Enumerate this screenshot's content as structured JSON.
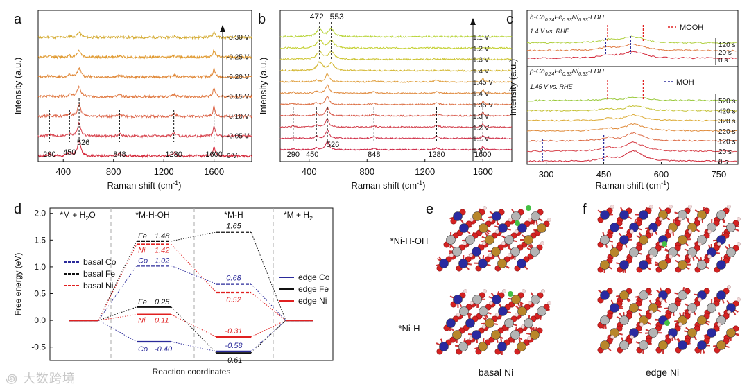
{
  "panels": {
    "a": "a",
    "b": "b",
    "c": "c",
    "d": "d",
    "e": "e",
    "f": "f"
  },
  "raman_axis": {
    "xlabel": "Raman shift (cm",
    "xlabel_sup": "-1",
    "xlabel_end": ")",
    "ylabel": "Intensity (a.u.)"
  },
  "watermark": "大数跨境",
  "chart_data": [
    {
      "id": "a",
      "type": "line",
      "xlim": [
        200,
        1900
      ],
      "xticks": [
        400,
        800,
        1200,
        1600
      ],
      "trace_labels": [
        "-0.30 V",
        "-0.25 V",
        "-0.20 V",
        "-0.15 V",
        "-0.10 V",
        "-0.05 V",
        "0 V"
      ],
      "trace_colors": [
        "#d4aa30",
        "#e09a30",
        "#e08838",
        "#e07840",
        "#dc6448",
        "#d84650",
        "#d4283a"
      ],
      "peak_positions": [
        290,
        450,
        526,
        848,
        1280,
        1600
      ],
      "peak_labels": [
        "290",
        "450",
        "526",
        "848",
        "1280",
        "1600"
      ]
    },
    {
      "id": "b",
      "type": "line",
      "xlim": [
        200,
        1800
      ],
      "xticks": [
        400,
        800,
        1200,
        1600
      ],
      "trace_labels": [
        "1.1 V",
        "1.2 V",
        "1.3 V",
        "1.4 V",
        "1.45 V",
        "1.4 V",
        "1.35 V",
        "1.3 V",
        "1.2 V",
        "1.1 V",
        "1 V"
      ],
      "trace_colors": [
        "#b8d438",
        "#c4d030",
        "#ccc430",
        "#d4b834",
        "#e0a040",
        "#e08c40",
        "#dc7044",
        "#d8584a",
        "#d44450",
        "#d03048",
        "#cc2040"
      ],
      "peak_positions": [
        290,
        450,
        472,
        526,
        553,
        848,
        1280,
        1600
      ],
      "top_peak_labels": [
        "472",
        "553"
      ],
      "bottom_peak_labels": [
        "290",
        "450",
        "526",
        "848",
        "1280",
        "1600"
      ]
    },
    {
      "id": "c",
      "type": "line",
      "xlim": [
        250,
        800
      ],
      "xticks": [
        300,
        450,
        600,
        750
      ],
      "top_title": "h-Co",
      "top_title_rest": "Fe",
      "top_title_rest2": "Ni",
      "top_title_end": "-LDH",
      "top_sub": [
        "0.34",
        "0.33",
        "0.33"
      ],
      "top_potential": "1.4 V vs. RHE",
      "top_traces": [
        "120 s",
        "20 s",
        "0 s"
      ],
      "top_colors": [
        "#b0d040",
        "#e07a40",
        "#d4283a"
      ],
      "bottom_title": "p-Co",
      "bottom_potential": "1.45 V vs. RHE",
      "bottom_traces": [
        "520 s",
        "420 s",
        "320 s",
        "220 s",
        "120 s",
        "20 s",
        "0 s"
      ],
      "bottom_colors": [
        "#98c838",
        "#c4c030",
        "#dcaa34",
        "#e08c3c",
        "#dc6a44",
        "#d8444c",
        "#d02838"
      ],
      "legend_mooh": "MOOH",
      "legend_moh": "MOH",
      "mooh_positions": [
        460,
        553
      ],
      "moh_positions": [
        290,
        450
      ]
    },
    {
      "id": "d",
      "type": "energy_diagram",
      "title": "",
      "ylabel": "Free energy (eV)",
      "xlabel": "Reaction coordinates",
      "ylim": [
        -0.75,
        2.1
      ],
      "yticks": [
        -0.5,
        0.0,
        0.5,
        1.0,
        1.5,
        2.0
      ],
      "ytick_labels": [
        "-0.5",
        "0.0",
        "0.5",
        "1.0",
        "1.5",
        "2.0"
      ],
      "states": [
        "*M + H2O",
        "*M-H-OH",
        "*M-H",
        "*M + H2"
      ],
      "state_labels": [
        {
          "pre": "*M + H",
          "sub": "2",
          "post": "O"
        },
        {
          "pre": "*M-H-OH",
          "sub": "",
          "post": ""
        },
        {
          "pre": "*M-H",
          "sub": "",
          "post": ""
        },
        {
          "pre": "*M + H",
          "sub": "2",
          "post": ""
        }
      ],
      "series": [
        {
          "name": "basal Co",
          "values": [
            0,
            1.02,
            0.68,
            0
          ],
          "color": "#2a2a9a",
          "dashed": true,
          "labels": [
            "",
            "Co",
            "",
            ""
          ],
          "value_labels": [
            "",
            "1.02",
            "0.68",
            ""
          ]
        },
        {
          "name": "basal Fe",
          "values": [
            0,
            1.48,
            1.65,
            0
          ],
          "color": "#111111",
          "dashed": true,
          "labels": [
            "",
            "Fe",
            "",
            ""
          ],
          "value_labels": [
            "",
            "1.48",
            "1.65",
            ""
          ]
        },
        {
          "name": "basal Ni",
          "values": [
            0,
            1.42,
            0.52,
            0
          ],
          "color": "#e02020",
          "dashed": true,
          "labels": [
            "",
            "Ni",
            "",
            ""
          ],
          "value_labels": [
            "",
            "1.42",
            "0.52",
            ""
          ]
        },
        {
          "name": "edge Co",
          "values": [
            0,
            -0.4,
            -0.58,
            0
          ],
          "color": "#2a2a9a",
          "dashed": false,
          "labels": [
            "",
            "Co",
            "",
            ""
          ],
          "value_labels": [
            "",
            "-0.40",
            "-0.58",
            ""
          ]
        },
        {
          "name": "edge Fe",
          "values": [
            0,
            0.25,
            -0.61,
            0
          ],
          "color": "#111111",
          "dashed": false,
          "labels": [
            "",
            "Fe",
            "",
            ""
          ],
          "value_labels": [
            "",
            "0.25",
            "-0.61",
            ""
          ]
        },
        {
          "name": "edge Ni",
          "values": [
            0,
            0.11,
            -0.31,
            0
          ],
          "color": "#e02020",
          "dashed": false,
          "labels": [
            "",
            "Ni",
            "",
            ""
          ],
          "value_labels": [
            "",
            "0.11",
            "-0.31",
            ""
          ]
        }
      ]
    }
  ],
  "panel_e": {
    "row1": "*Ni-H-OH",
    "row2": "*Ni-H",
    "caption": "basal Ni"
  },
  "panel_f": {
    "caption": "edge Ni"
  }
}
